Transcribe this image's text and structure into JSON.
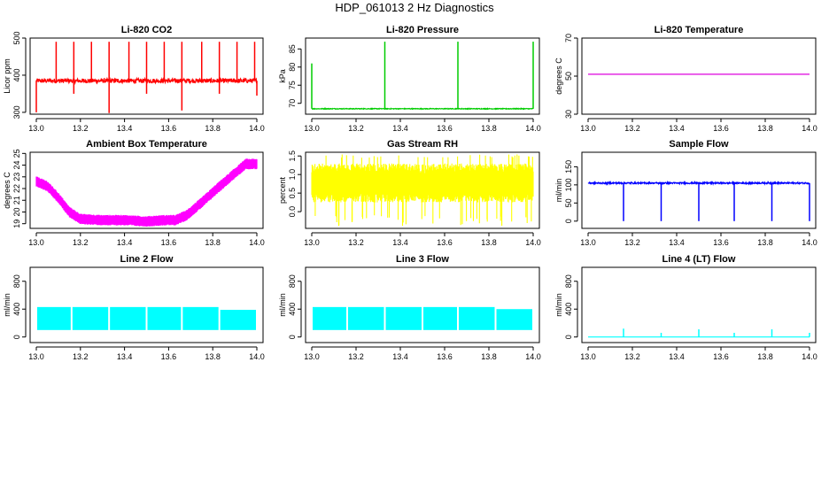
{
  "page": {
    "title": "HDP_061013  2 Hz Diagnostics"
  },
  "chart_data": [
    {
      "type": "line",
      "title": "Li-820 CO2",
      "xlabel": "",
      "ylabel": "Licor ppm",
      "xlim": [
        13.0,
        14.0
      ],
      "ylim": [
        295,
        500
      ],
      "color": "#ff0000",
      "x_ticks": [
        "13.0",
        "13.2",
        "13.4",
        "13.6",
        "13.8",
        "14.0"
      ],
      "y_ticks": [
        "300",
        "400",
        "500"
      ],
      "series": [
        {
          "baseline": 385,
          "noise": 6,
          "style": "spiky",
          "spikes_up": [
            [
              13.09,
              490
            ],
            [
              13.17,
              490
            ],
            [
              13.25,
              490
            ],
            [
              13.33,
              490
            ],
            [
              13.42,
              490
            ],
            [
              13.5,
              490
            ],
            [
              13.58,
              490
            ],
            [
              13.66,
              490
            ],
            [
              13.75,
              490
            ],
            [
              13.83,
              490
            ],
            [
              13.91,
              490
            ],
            [
              13.99,
              490
            ]
          ],
          "spikes_down": [
            [
              13.0,
              300
            ],
            [
              13.17,
              350
            ],
            [
              13.33,
              298
            ],
            [
              13.5,
              350
            ],
            [
              13.66,
              305
            ],
            [
              13.83,
              350
            ],
            [
              14.0,
              345
            ]
          ]
        }
      ]
    },
    {
      "type": "line",
      "title": "Li-820 Pressure",
      "xlabel": "",
      "ylabel": "kPa",
      "xlim": [
        13.0,
        14.0
      ],
      "ylim": [
        67,
        88
      ],
      "color": "#00cc00",
      "x_ticks": [
        "13.0",
        "13.2",
        "13.4",
        "13.6",
        "13.8",
        "14.0"
      ],
      "y_ticks": [
        "70",
        "75",
        "80",
        "85"
      ],
      "series": [
        {
          "baseline": 68.5,
          "noise": 0.1,
          "style": "spiky",
          "spikes_up": [
            [
              13.0,
              81
            ],
            [
              13.33,
              87
            ],
            [
              13.66,
              87
            ],
            [
              14.0,
              87
            ]
          ],
          "spikes_down": []
        }
      ]
    },
    {
      "type": "line",
      "title": "Li-820 Temperature",
      "xlabel": "",
      "ylabel": "degrees C",
      "xlim": [
        13.0,
        14.0
      ],
      "ylim": [
        30,
        70
      ],
      "color": "#dd00dd",
      "x_ticks": [
        "13.0",
        "13.2",
        "13.4",
        "13.6",
        "13.8",
        "14.0"
      ],
      "y_ticks": [
        "30",
        "50",
        "70"
      ],
      "series": [
        {
          "baseline": 51,
          "noise": 0,
          "style": "flat",
          "spikes_up": [],
          "spikes_down": []
        }
      ]
    },
    {
      "type": "line",
      "title": "Ambient Box Temperature",
      "xlabel": "",
      "ylabel": "degrees C",
      "xlim": [
        13.0,
        14.0
      ],
      "ylim": [
        18.6,
        25.1
      ],
      "color": "#ff00ff",
      "x_ticks": [
        "13.0",
        "13.2",
        "13.4",
        "13.6",
        "13.8",
        "14.0"
      ],
      "y_ticks": [
        "19",
        "20",
        "21",
        "22",
        "23",
        "24",
        "25"
      ],
      "series": [
        {
          "style": "band",
          "band": 0.45,
          "points": [
            [
              13.0,
              22.6
            ],
            [
              13.05,
              22.2
            ],
            [
              13.1,
              21.2
            ],
            [
              13.15,
              20.0
            ],
            [
              13.2,
              19.4
            ],
            [
              13.3,
              19.3
            ],
            [
              13.4,
              19.3
            ],
            [
              13.5,
              19.2
            ],
            [
              13.58,
              19.3
            ],
            [
              13.63,
              19.3
            ],
            [
              13.68,
              19.7
            ],
            [
              13.75,
              20.8
            ],
            [
              13.82,
              22.0
            ],
            [
              13.9,
              23.3
            ],
            [
              13.95,
              24.1
            ],
            [
              14.0,
              24.1
            ]
          ]
        }
      ]
    },
    {
      "type": "line",
      "title": "Gas Stream RH",
      "xlabel": "",
      "ylabel": "percent",
      "xlim": [
        13.0,
        14.0
      ],
      "ylim": [
        -0.45,
        1.6
      ],
      "color": "#ffff00",
      "x_ticks": [
        "13.0",
        "13.2",
        "13.4",
        "13.6",
        "13.8",
        "14.0"
      ],
      "y_ticks": [
        "0.0",
        "0.5",
        "1.0",
        "1.5"
      ],
      "series": [
        {
          "style": "noise",
          "center": 0.8,
          "amplitude": 0.55,
          "extreme_low": -0.4,
          "extreme_high": 1.55
        }
      ]
    },
    {
      "type": "line",
      "title": "Sample Flow",
      "xlabel": "",
      "ylabel": "ml/min",
      "xlim": [
        13.0,
        14.0
      ],
      "ylim": [
        -20,
        190
      ],
      "color": "#0000ff",
      "x_ticks": [
        "13.0",
        "13.2",
        "13.4",
        "13.6",
        "13.8",
        "14.0"
      ],
      "y_ticks": [
        "0",
        "50",
        "100",
        "150"
      ],
      "series": [
        {
          "baseline": 105,
          "noise": 2,
          "style": "spiky",
          "spikes_up": [],
          "spikes_down": [
            [
              13.16,
              0
            ],
            [
              13.33,
              0
            ],
            [
              13.5,
              0
            ],
            [
              13.66,
              0
            ],
            [
              13.83,
              0
            ],
            [
              14.0,
              0
            ]
          ]
        }
      ]
    },
    {
      "type": "area",
      "title": "Line 2 Flow",
      "xlabel": "",
      "ylabel": "ml/min",
      "xlim": [
        13.0,
        14.0
      ],
      "ylim": [
        -80,
        1000
      ],
      "color": "#00ffff",
      "x_ticks": [
        "13.0",
        "13.2",
        "13.4",
        "13.6",
        "13.8",
        "14.0"
      ],
      "y_ticks": [
        "0",
        "400",
        "800"
      ],
      "series": [
        {
          "style": "block",
          "low": 100,
          "high": 430,
          "end_high": 390,
          "gaps": [
            13.16,
            13.33,
            13.5,
            13.66,
            13.83
          ]
        }
      ]
    },
    {
      "type": "area",
      "title": "Line 3 Flow",
      "xlabel": "",
      "ylabel": "ml/min",
      "xlim": [
        13.0,
        14.0
      ],
      "ylim": [
        -80,
        1000
      ],
      "color": "#00ffff",
      "x_ticks": [
        "13.0",
        "13.2",
        "13.4",
        "13.6",
        "13.8",
        "14.0"
      ],
      "y_ticks": [
        "0",
        "400",
        "800"
      ],
      "series": [
        {
          "style": "block",
          "low": 100,
          "high": 430,
          "end_high": 400,
          "gaps": [
            13.16,
            13.33,
            13.5,
            13.66,
            13.83
          ]
        }
      ]
    },
    {
      "type": "line",
      "title": "Line 4 (LT) Flow",
      "xlabel": "",
      "ylabel": "ml/min",
      "xlim": [
        13.0,
        14.0
      ],
      "ylim": [
        -80,
        1000
      ],
      "color": "#00ffff",
      "x_ticks": [
        "13.0",
        "13.2",
        "13.4",
        "13.6",
        "13.8",
        "14.0"
      ],
      "y_ticks": [
        "0",
        "400",
        "800"
      ],
      "series": [
        {
          "baseline": 0,
          "noise": 0,
          "style": "spiky",
          "spikes_up": [
            [
              13.16,
              120
            ],
            [
              13.33,
              60
            ],
            [
              13.5,
              110
            ],
            [
              13.66,
              60
            ],
            [
              13.83,
              110
            ],
            [
              14.0,
              60
            ]
          ],
          "spikes_down": []
        }
      ]
    }
  ]
}
